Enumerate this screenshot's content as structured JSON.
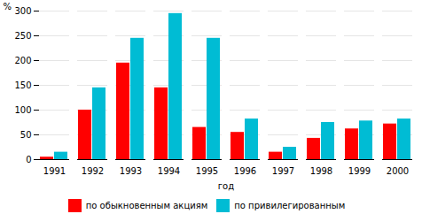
{
  "chart_data": {
    "type": "bar",
    "categories": [
      "1991",
      "1992",
      "1993",
      "1994",
      "1995",
      "1996",
      "1997",
      "1998",
      "1999",
      "2000"
    ],
    "series": [
      {
        "name": "по обыкновенным акциям",
        "color": "#ff0000",
        "values": [
          5,
          100,
          195,
          145,
          65,
          55,
          15,
          43,
          62,
          72
        ]
      },
      {
        "name": "по привилегированным",
        "color": "#00bcd4",
        "values": [
          15,
          145,
          245,
          295,
          245,
          82,
          25,
          75,
          78,
          82
        ]
      }
    ],
    "xlabel": "год",
    "ylabel": "%",
    "ylim": [
      0,
      300
    ],
    "yticks": [
      0,
      50,
      100,
      150,
      200,
      250,
      300
    ],
    "grid": true,
    "legend": "bottom"
  }
}
